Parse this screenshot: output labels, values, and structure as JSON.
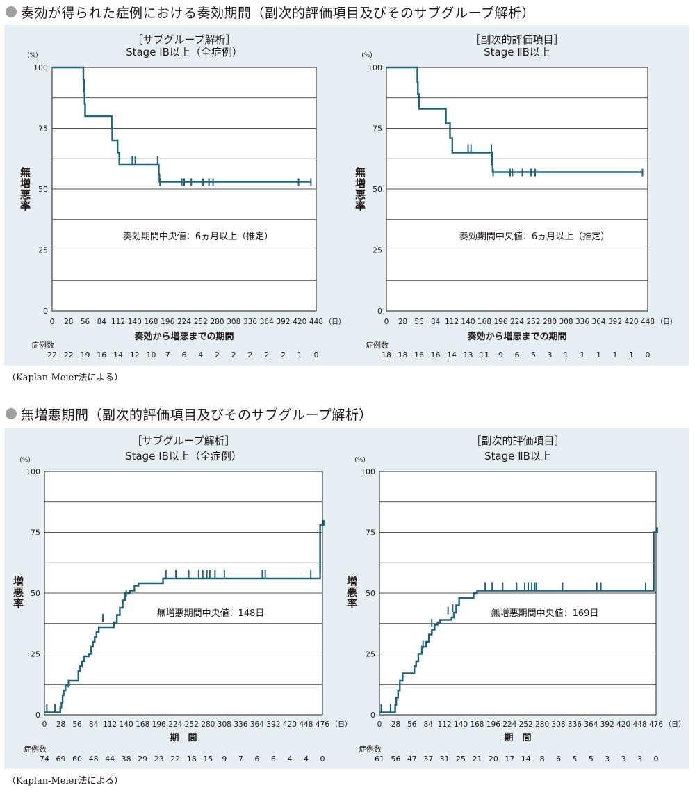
{
  "sections": [
    {
      "title": "奏効が得られた症例における奏効期間（副次的評価項目及びそのサブグループ解析）",
      "note": "（Kaplan-Meier法による）"
    },
    {
      "title": "無増悪期間（副次的評価項目及びそのサブグループ解析）",
      "note": "（Kaplan-Meier法による）"
    }
  ],
  "colors": {
    "line": "#1d6380",
    "panel": "#e6eff3",
    "grid": "#231815",
    "bullet": "#9e9e9e"
  },
  "chart_data": [
    {
      "type": "line",
      "title": "［サブグループ解析］",
      "subtitle": "Stage ⅠB以上（全症例）",
      "ylabel": "無増悪率",
      "yunit": "(%)",
      "xlabel": "奏効から増悪までの期間",
      "xunit": "（日）",
      "xticks": [
        "0",
        "28",
        "56",
        "84",
        "112",
        "140",
        "168",
        "196",
        "224",
        "252",
        "280",
        "308",
        "336",
        "364",
        "392",
        "420",
        "448"
      ],
      "yticks": [
        "0",
        "25",
        "50",
        "75",
        "100"
      ],
      "xlim": [
        0,
        448
      ],
      "ylim": [
        0,
        100
      ],
      "annotation": "奏効期間中央値：6ヵ月以上（推定）",
      "risk_label": "症例数",
      "at_risk": [
        "22",
        "22",
        "19",
        "16",
        "14",
        "12",
        "10",
        "7",
        "6",
        "4",
        "2",
        "2",
        "2",
        "2",
        "2",
        "1",
        "0"
      ],
      "series": [
        {
          "step": [
            [
              0,
              100
            ],
            [
              52,
              100
            ],
            [
              53,
              95
            ],
            [
              54,
              90
            ],
            [
              55,
              85
            ],
            [
              56,
              80
            ],
            [
              100,
              80
            ],
            [
              101,
              75
            ],
            [
              102,
              70
            ],
            [
              110,
              70
            ],
            [
              111,
              65
            ],
            [
              113,
              65
            ],
            [
              114,
              60
            ],
            [
              180,
              60
            ],
            [
              181,
              56
            ],
            [
              182,
              53
            ],
            [
              440,
              53
            ]
          ],
          "censored": [
            [
              136,
              62
            ],
            [
              141,
              62
            ],
            [
              179,
              62
            ],
            [
              183,
              53
            ],
            [
              220,
              53
            ],
            [
              224,
              53
            ],
            [
              236,
              53
            ],
            [
              256,
              53
            ],
            [
              266,
              53
            ],
            [
              273,
              53
            ],
            [
              418,
              53
            ],
            [
              439,
              53
            ]
          ]
        }
      ]
    },
    {
      "type": "line",
      "title": "［副次的評価項目］",
      "subtitle": "Stage ⅡB以上",
      "ylabel": "無増悪率",
      "yunit": "(%)",
      "xlabel": "奏効から増悪までの期間",
      "xunit": "（日）",
      "xticks": [
        "0",
        "28",
        "56",
        "84",
        "112",
        "140",
        "168",
        "196",
        "224",
        "252",
        "280",
        "308",
        "336",
        "364",
        "392",
        "420",
        "448"
      ],
      "yticks": [
        "0",
        "25",
        "50",
        "75",
        "100"
      ],
      "xlim": [
        0,
        448
      ],
      "ylim": [
        0,
        100
      ],
      "annotation": "奏効期間中央値：6ヵ月以上（推定）",
      "risk_label": "症例数",
      "at_risk": [
        "18",
        "18",
        "16",
        "16",
        "14",
        "13",
        "11",
        "9",
        "6",
        "5",
        "3",
        "1",
        "1",
        "1",
        "1",
        "1",
        "0"
      ],
      "series": [
        {
          "step": [
            [
              0,
              100
            ],
            [
              52,
              100
            ],
            [
              53,
              94
            ],
            [
              54,
              89
            ],
            [
              56,
              83
            ],
            [
              101,
              83
            ],
            [
              102,
              77
            ],
            [
              108,
              77
            ],
            [
              109,
              71
            ],
            [
              112,
              71
            ],
            [
              113,
              65
            ],
            [
              180,
              65
            ],
            [
              181,
              60
            ],
            [
              182,
              57
            ],
            [
              440,
              57
            ]
          ],
          "censored": [
            [
              140,
              67
            ],
            [
              145,
              67
            ],
            [
              180,
              67
            ],
            [
              183,
              57
            ],
            [
              212,
              57
            ],
            [
              216,
              57
            ],
            [
              233,
              57
            ],
            [
              248,
              57
            ],
            [
              255,
              57
            ],
            [
              439,
              57
            ]
          ]
        }
      ]
    },
    {
      "type": "line",
      "title": "［サブグループ解析］",
      "subtitle": "Stage ⅠB以上（全症例）",
      "ylabel": "増悪率",
      "yunit": "(%)",
      "xlabel": "期　間",
      "xunit": "（日）",
      "xticks": [
        "0",
        "28",
        "56",
        "84",
        "112",
        "140",
        "168",
        "196",
        "224",
        "252",
        "280",
        "308",
        "336",
        "364",
        "392",
        "420",
        "448",
        "476"
      ],
      "yticks": [
        "0",
        "25",
        "50",
        "75",
        "100"
      ],
      "xlim": [
        0,
        476
      ],
      "ylim": [
        0,
        100
      ],
      "annotation": "無増悪期間中央値：148日",
      "risk_label": "症例数",
      "at_risk": [
        "74",
        "69",
        "60",
        "48",
        "44",
        "38",
        "29",
        "23",
        "22",
        "18",
        "15",
        "9",
        "7",
        "6",
        "6",
        "4",
        "4",
        "0"
      ],
      "series": [
        {
          "step": [
            [
              0,
              1
            ],
            [
              26,
              1
            ],
            [
              27,
              3
            ],
            [
              29,
              5
            ],
            [
              31,
              8
            ],
            [
              33,
              10
            ],
            [
              36,
              12
            ],
            [
              42,
              14
            ],
            [
              56,
              14
            ],
            [
              58,
              18
            ],
            [
              61,
              20
            ],
            [
              64,
              22
            ],
            [
              68,
              24
            ],
            [
              76,
              25
            ],
            [
              80,
              28
            ],
            [
              83,
              30
            ],
            [
              86,
              32
            ],
            [
              89,
              34
            ],
            [
              93,
              36
            ],
            [
              117,
              36
            ],
            [
              119,
              38
            ],
            [
              124,
              41
            ],
            [
              129,
              44
            ],
            [
              134,
              47
            ],
            [
              138,
              50
            ],
            [
              146,
              51
            ],
            [
              154,
              53
            ],
            [
              161,
              54
            ],
            [
              199,
              54
            ],
            [
              203,
              56
            ],
            [
              220,
              56
            ],
            [
              226,
              56
            ],
            [
              470,
              56
            ],
            [
              472,
              78
            ],
            [
              478,
              80
            ]
          ],
          "censored": [
            [
              4,
              3
            ],
            [
              18,
              3
            ],
            [
              41,
              13
            ],
            [
              100,
              40
            ],
            [
              140,
              50
            ],
            [
              208,
              58
            ],
            [
              225,
              58
            ],
            [
              247,
              58
            ],
            [
              264,
              58
            ],
            [
              271,
              58
            ],
            [
              278,
              58
            ],
            [
              283,
              58
            ],
            [
              292,
              58
            ],
            [
              308,
              58
            ],
            [
              373,
              58
            ],
            [
              378,
              58
            ],
            [
              456,
              58
            ]
          ]
        }
      ]
    },
    {
      "type": "line",
      "title": "［副次的評価項目］",
      "subtitle": "Stage ⅡB以上",
      "ylabel": "増悪率",
      "yunit": "(%)",
      "xlabel": "期　間",
      "xunit": "（日）",
      "xticks": [
        "0",
        "28",
        "56",
        "84",
        "112",
        "140",
        "168",
        "196",
        "224",
        "252",
        "280",
        "308",
        "336",
        "364",
        "392",
        "420",
        "448",
        "476"
      ],
      "yticks": [
        "0",
        "25",
        "50",
        "75",
        "100"
      ],
      "xlim": [
        0,
        476
      ],
      "ylim": [
        0,
        100
      ],
      "annotation": "無増悪期間中央値：169日",
      "risk_label": "症例数",
      "at_risk": [
        "61",
        "56",
        "47",
        "37",
        "31",
        "25",
        "21",
        "20",
        "17",
        "14",
        "8",
        "6",
        "5",
        "5",
        "3",
        "3",
        "3",
        "0"
      ],
      "series": [
        {
          "step": [
            [
              0,
              1
            ],
            [
              26,
              1
            ],
            [
              27,
              4
            ],
            [
              29,
              7
            ],
            [
              32,
              10
            ],
            [
              35,
              14
            ],
            [
              40,
              17
            ],
            [
              58,
              17
            ],
            [
              60,
              20
            ],
            [
              63,
              22
            ],
            [
              67,
              25
            ],
            [
              73,
              28
            ],
            [
              80,
              30
            ],
            [
              85,
              33
            ],
            [
              90,
              35
            ],
            [
              95,
              37
            ],
            [
              100,
              38
            ],
            [
              104,
              39
            ],
            [
              120,
              39
            ],
            [
              124,
              40
            ],
            [
              128,
              42
            ],
            [
              132,
              45
            ],
            [
              137,
              48
            ],
            [
              160,
              48
            ],
            [
              162,
              50
            ],
            [
              168,
              51
            ],
            [
              470,
              51
            ],
            [
              472,
              75
            ],
            [
              478,
              77
            ]
          ],
          "censored": [
            [
              3,
              3
            ],
            [
              19,
              3
            ],
            [
              75,
              29
            ],
            [
              90,
              38
            ],
            [
              118,
              43
            ],
            [
              126,
              44
            ],
            [
              182,
              53
            ],
            [
              194,
              53
            ],
            [
              212,
              53
            ],
            [
              236,
              53
            ],
            [
              250,
              53
            ],
            [
              256,
              53
            ],
            [
              262,
              53
            ],
            [
              267,
              53
            ],
            [
              270,
              53
            ],
            [
              315,
              53
            ],
            [
              374,
              53
            ],
            [
              381,
              53
            ],
            [
              458,
              53
            ]
          ]
        }
      ]
    }
  ]
}
